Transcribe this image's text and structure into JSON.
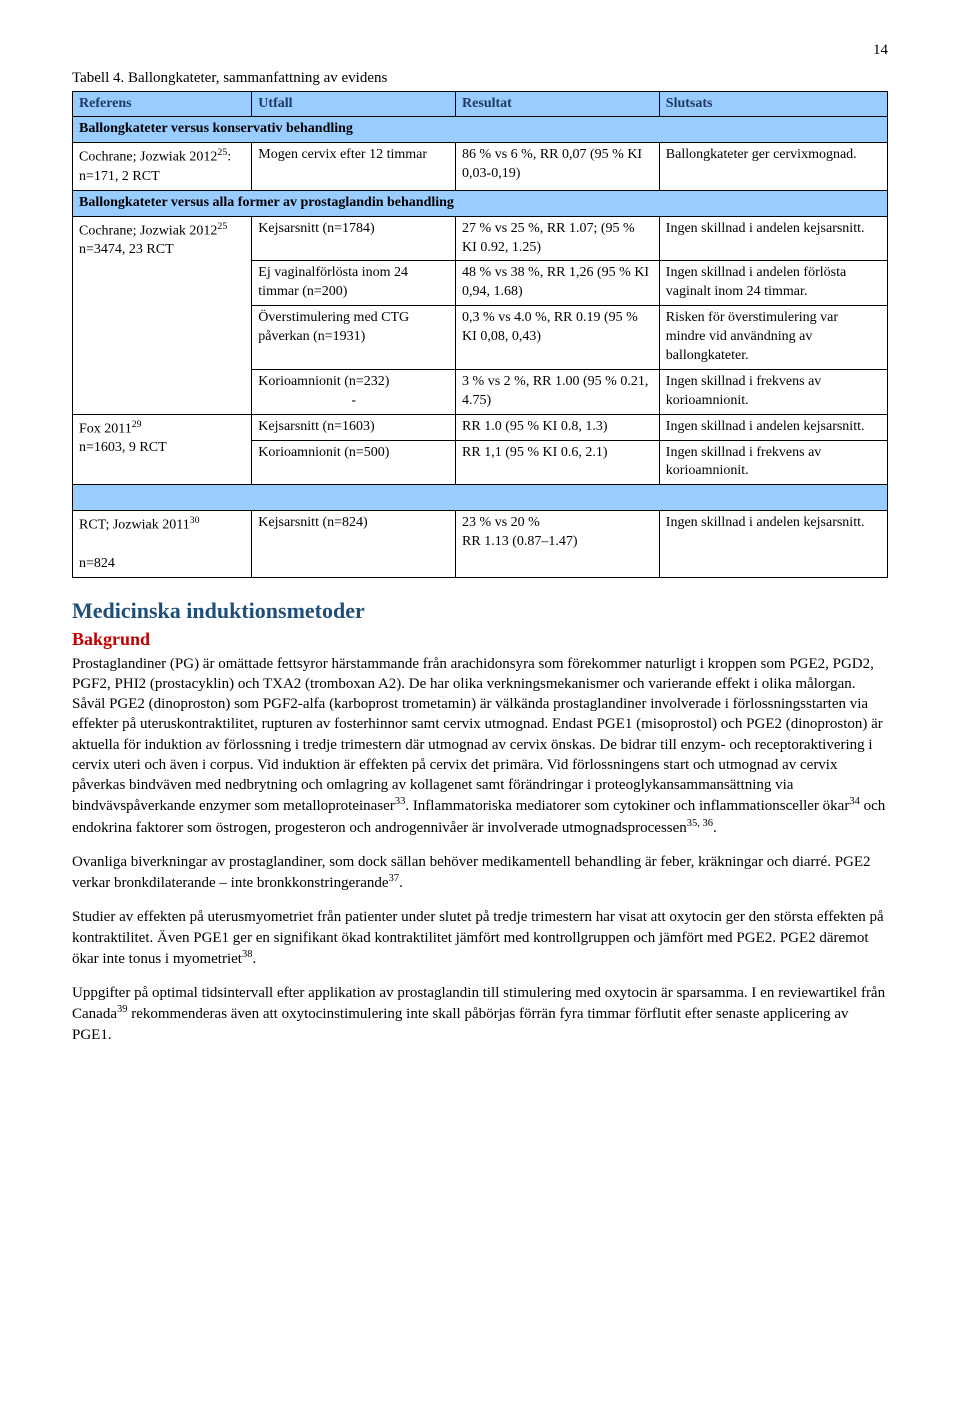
{
  "page_number": "14",
  "table_caption": "Tabell 4. Ballongkateter, sammanfattning av evidens",
  "table": {
    "header_bg": "#99ccff",
    "border_color": "#000000",
    "headers": [
      "Referens",
      "Utfall",
      "Resultat",
      "Slutsats"
    ],
    "sections": [
      {
        "title": "Ballongkateter versus konservativ behandling",
        "rows": [
          {
            "ref_html": "Cochrane; Jozwiak 2012<sup>25</sup>:<br>n=171, 2 RCT",
            "outcome": "Mogen cervix efter 12 timmar",
            "result": "86 % vs 6 %, RR 0,07 (95 % KI 0,03-0,19)",
            "conclusion": "Ballongkateter ger cervixmognad."
          }
        ]
      },
      {
        "title": "Ballongkateter versus alla former av prostaglandin behandling",
        "rows": [
          {
            "ref_html": "Cochrane; Jozwiak 2012<sup>25</sup><br>n=3474, 23 RCT",
            "ref_rowspan": 4,
            "outcome": "Kejsarsnitt (n=1784)",
            "result": "27 % vs 25 %, RR 1.07; (95 % KI 0.92, 1.25)",
            "conclusion": "Ingen skillnad i andelen kejsarsnitt."
          },
          {
            "outcome": "Ej vaginalförlösta inom 24 timmar (n=200)",
            "result": "48 % vs 38 %, RR 1,26 (95 % KI 0,94, 1.68)",
            "conclusion": "Ingen skillnad i andelen förlösta vaginalt inom 24 timmar."
          },
          {
            "outcome": "Överstimulering med CTG påverkan (n=1931)",
            "result": "0,3 % vs 4.0 %, RR 0.19 (95 % KI 0,08, 0,43)",
            "conclusion": "Risken för överstimulering var mindre vid användning av ballongkateter."
          },
          {
            "outcome_html": "Korioamnionit (n=232)<div style='text-align:center'>-</div>",
            "result": "3 % vs 2 %, RR 1.00 (95 % 0.21, 4.75)",
            "conclusion": "Ingen skillnad i frekvens av korioamnionit."
          },
          {
            "ref_html": "Fox 2011<sup>29</sup><br>n=1603, 9 RCT",
            "ref_rowspan": 2,
            "outcome": "Kejsarsnitt (n=1603)",
            "result": "RR 1.0 (95 % KI 0.8, 1.3)",
            "conclusion": "Ingen skillnad i andelen kejsarsnitt."
          },
          {
            "outcome": "Korioamnionit (n=500)",
            "result": "RR 1,1 (95 % KI 0.6, 2.1)",
            "conclusion": "Ingen skillnad i frekvens av korioamnionit."
          }
        ]
      },
      {
        "blank": true,
        "rows": [
          {
            "ref_html": "RCT; Jozwiak 2011<sup>30</sup><br><br>n=824",
            "outcome": "Kejsarsnitt (n=824)",
            "result": "23 % vs 20 %<br>RR 1.13 (0.87–1.47)",
            "conclusion": "Ingen skillnad i andelen kejsarsnitt."
          }
        ]
      }
    ]
  },
  "section_heading": "Medicinska induktionsmetoder",
  "section_subheading": "Bakgrund",
  "paragraphs": [
    "Prostaglandiner (PG) är omättade fettsyror härstammande från arachidonsyra som förekommer naturligt i kroppen som PGE2, PGD2, PGF2, PHI2 (prostacyklin) och TXA2 (tromboxan A2). De har olika verkningsmekanismer och varierande effekt i olika målorgan. Såväl PGE2 (dinoproston) som PGF2-alfa (karboprost trometamin) är välkända prostaglandiner involverade i förlossningsstarten via effekter på uteruskontraktilitet, rupturen av fosterhinnor samt cervix utmognad. Endast PGE1 (misoprostol) och PGE2 (dinoproston) är aktuella för induktion av förlossning i tredje trimestern där utmognad av cervix önskas. De bidrar till enzym- och receptoraktivering i cervix uteri och även i corpus. Vid induktion är effekten på cervix det primära. Vid förlossningens start och utmognad av cervix påverkas bindväven med nedbrytning och omlagring av kollagenet samt förändringar i proteoglykansammansättning via bindvävspåverkande enzymer som metalloproteinaser<sup>33</sup>. Inflammatoriska mediatorer som cytokiner och inflammationsceller ökar<sup>34</sup> och endokrina faktorer som östrogen, progesteron och androgennivåer är involverade utmognadsprocessen<sup>35, 36</sup>.",
    "Ovanliga biverkningar av prostaglandiner, som dock sällan behöver medikamentell behandling är feber, kräkningar och diarré. PGE2 verkar bronkdilaterande – inte bronkkonstringerande<sup>37</sup>.",
    "Studier av effekten på uterusmyometriet från patienter under slutet på tredje trimestern har visat att oxytocin ger den största effekten på kontraktilitet. Även PGE1 ger en signifikant ökad kontraktilitet jämfört med kontrollgruppen och jämfört med PGE2. PGE2 däremot ökar inte tonus i myometriet<sup>38</sup>.",
    "Uppgifter på optimal tidsintervall efter applikation av prostaglandin till stimulering med oxytocin är sparsamma. I en reviewartikel från Canada<sup>39</sup> rekommenderas även att oxytocinstimulering inte skall påbörjas förrän fyra timmar förflutit efter senaste applicering av PGE1."
  ],
  "colors": {
    "heading_blue": "#1f4e79",
    "heading_red": "#c00000",
    "table_header_text": "#1f3864",
    "table_bg": "#99ccff",
    "text": "#000000",
    "background": "#ffffff"
  }
}
